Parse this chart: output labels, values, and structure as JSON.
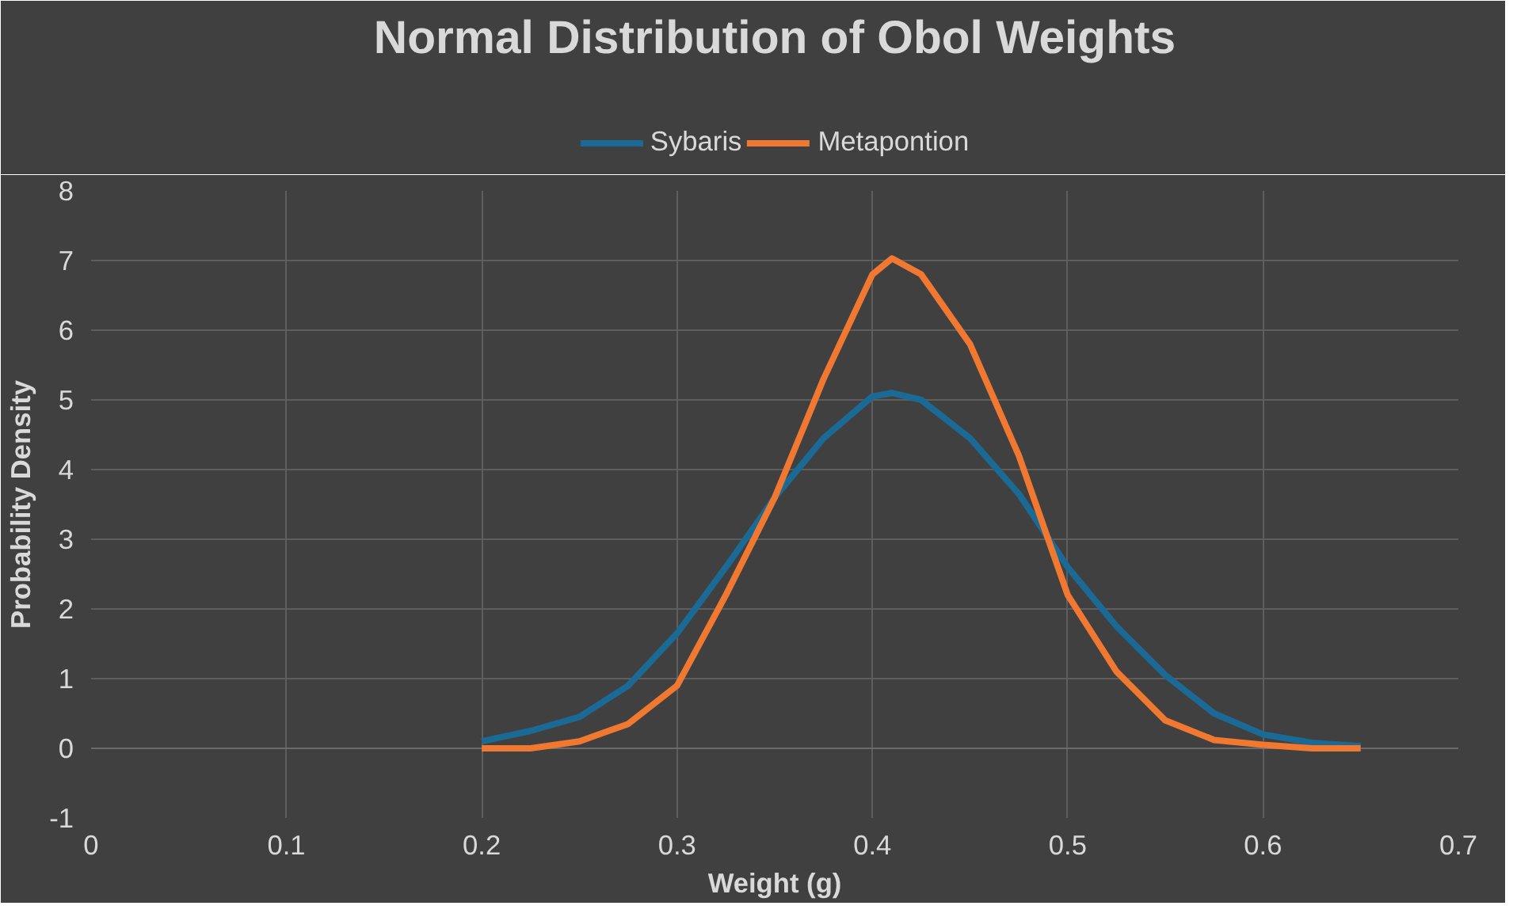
{
  "chart_data": {
    "type": "line",
    "title": "Normal Distribution of Obol Weights",
    "xlabel": "Weight (g)",
    "ylabel": "Probability Density",
    "xlim": [
      0,
      0.7
    ],
    "xticks": [
      0,
      0.1,
      0.2,
      0.3,
      0.4,
      0.5,
      0.6,
      0.7
    ],
    "ylim": [
      -1,
      8
    ],
    "yticks": [
      -1,
      0,
      1,
      2,
      3,
      4,
      5,
      6,
      7,
      8
    ],
    "grid": true,
    "legend": "top",
    "marker": "none",
    "line_style": "solid",
    "x": [
      0.2,
      0.225,
      0.25,
      0.275,
      0.3,
      0.325,
      0.35,
      0.375,
      0.4,
      0.41,
      0.425,
      0.45,
      0.475,
      0.5,
      0.525,
      0.55,
      0.575,
      0.6,
      0.625,
      0.65
    ],
    "series": [
      {
        "name": "Sybaris",
        "color": "#1b6a96",
        "values": [
          0.1,
          0.25,
          0.45,
          0.9,
          1.65,
          2.6,
          3.6,
          4.45,
          5.05,
          5.1,
          5.0,
          4.45,
          3.65,
          2.6,
          1.75,
          1.05,
          0.5,
          0.2,
          0.08,
          0.03
        ]
      },
      {
        "name": "Metapontion",
        "color": "#f07830",
        "values": [
          0,
          0,
          0.1,
          0.35,
          0.9,
          2.2,
          3.6,
          5.3,
          6.8,
          7.03,
          6.8,
          5.8,
          4.2,
          2.2,
          1.1,
          0.4,
          0.12,
          0.05,
          0,
          0
        ]
      }
    ]
  }
}
